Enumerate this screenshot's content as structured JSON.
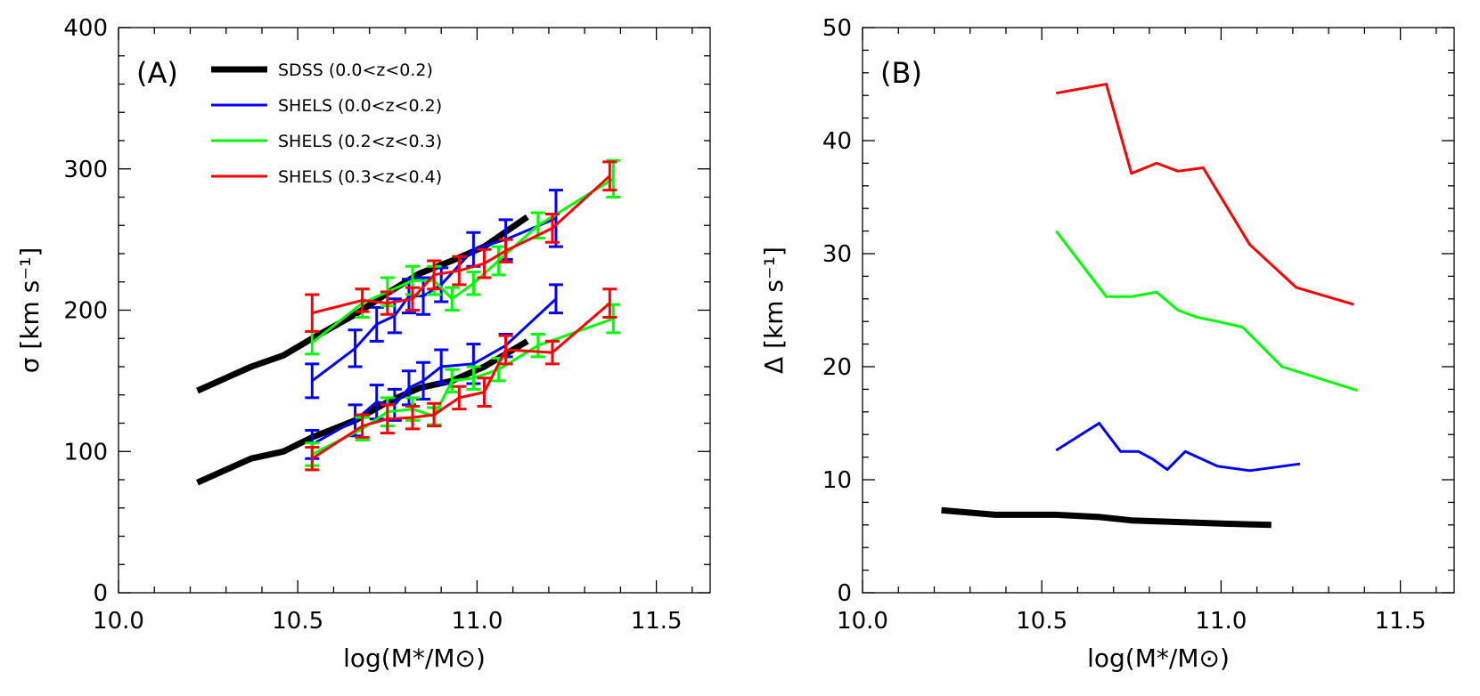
{
  "chart_data": [
    {
      "type": "line",
      "panel_label": "(A)",
      "xlabel": "log(M*/M⊙)",
      "ylabel": "σ [km s⁻¹]",
      "xlim": [
        10.0,
        11.65
      ],
      "ylim": [
        0,
        400
      ],
      "xticks": [
        "10.0",
        "10.5",
        "11.0",
        "11.5"
      ],
      "xtick_values": [
        10.0,
        10.5,
        11.0,
        11.5
      ],
      "yticks": [
        "0",
        "100",
        "200",
        "300",
        "400"
      ],
      "ytick_values": [
        0,
        100,
        200,
        300,
        400
      ],
      "grid": false,
      "legend_position": "top-left",
      "legend": [
        {
          "label": "SDSS   (0.0<z<0.2)",
          "color": "#000000"
        },
        {
          "label": "SHELS  (0.0<z<0.2)",
          "color": "#0000ff"
        },
        {
          "label": "SHELS  (0.2<z<0.3)",
          "color": "#00ff00"
        },
        {
          "label": "SHELS  (0.3<z<0.4)",
          "color": "#ff0000"
        }
      ],
      "series": [
        {
          "color": "#000000",
          "group": "upper",
          "x": [
            10.22,
            10.37,
            10.46,
            10.54,
            10.66,
            10.75,
            10.84,
            10.93,
            11.02,
            11.14
          ],
          "y": [
            143,
            160,
            168,
            180,
            197,
            212,
            226,
            235,
            245,
            266
          ]
        },
        {
          "color": "#000000",
          "group": "lower",
          "x": [
            10.22,
            10.37,
            10.46,
            10.54,
            10.66,
            10.75,
            10.84,
            10.93,
            11.02,
            11.14
          ],
          "y": [
            78,
            95,
            100,
            110,
            122,
            135,
            145,
            150,
            160,
            178
          ]
        },
        {
          "color": "#0000ff",
          "group": "upper",
          "x": [
            10.54,
            10.66,
            10.72,
            10.77,
            10.81,
            10.85,
            10.9,
            10.99,
            11.08,
            11.22
          ],
          "y": [
            150,
            173,
            190,
            196,
            210,
            210,
            218,
            243,
            250,
            265
          ],
          "err": [
            12,
            13,
            12,
            12,
            12,
            13,
            12,
            12,
            14,
            20
          ]
        },
        {
          "color": "#0000ff",
          "group": "lower",
          "x": [
            10.54,
            10.66,
            10.72,
            10.77,
            10.81,
            10.85,
            10.9,
            10.99,
            11.08,
            11.22
          ],
          "y": [
            105,
            122,
            135,
            133,
            145,
            150,
            160,
            162,
            175,
            208
          ],
          "err": [
            10,
            11,
            12,
            11,
            12,
            13,
            12,
            14,
            8,
            10
          ]
        },
        {
          "color": "#00ff00",
          "group": "upper",
          "x": [
            10.54,
            10.68,
            10.75,
            10.82,
            10.88,
            10.93,
            10.99,
            11.06,
            11.17,
            11.38
          ],
          "y": [
            177,
            205,
            213,
            221,
            221,
            208,
            219,
            235,
            260,
            293
          ],
          "err": [
            8,
            10,
            10,
            10,
            10,
            8,
            8,
            10,
            9,
            13
          ]
        },
        {
          "color": "#00ff00",
          "group": "lower",
          "x": [
            10.54,
            10.68,
            10.75,
            10.82,
            10.88,
            10.93,
            10.99,
            11.06,
            11.17,
            11.38
          ],
          "y": [
            98,
            116,
            128,
            130,
            125,
            150,
            152,
            158,
            175,
            194
          ],
          "err": [
            8,
            8,
            10,
            8,
            6,
            8,
            8,
            8,
            8,
            10
          ]
        },
        {
          "color": "#ff0000",
          "group": "upper",
          "x": [
            10.54,
            10.68,
            10.75,
            10.82,
            10.88,
            10.95,
            11.02,
            11.08,
            11.21,
            11.37
          ],
          "y": [
            198,
            207,
            205,
            208,
            225,
            228,
            233,
            242,
            258,
            295
          ],
          "err": [
            13,
            8,
            8,
            8,
            10,
            10,
            10,
            8,
            10,
            10
          ]
        },
        {
          "color": "#ff0000",
          "group": "lower",
          "x": [
            10.54,
            10.68,
            10.75,
            10.82,
            10.88,
            10.95,
            11.02,
            11.08,
            11.21,
            11.37
          ],
          "y": [
            95,
            118,
            123,
            124,
            126,
            138,
            142,
            172,
            170,
            205
          ],
          "err": [
            8,
            8,
            10,
            8,
            8,
            8,
            10,
            10,
            8,
            10
          ]
        }
      ]
    },
    {
      "type": "line",
      "panel_label": "(B)",
      "xlabel": "log(M*/M⊙)",
      "ylabel": "Δ [km s⁻¹]",
      "xlim": [
        10.0,
        11.65
      ],
      "ylim": [
        0,
        50
      ],
      "xticks": [
        "10.0",
        "10.5",
        "11.0",
        "11.5"
      ],
      "xtick_values": [
        10.0,
        10.5,
        11.0,
        11.5
      ],
      "yticks": [
        "0",
        "10",
        "20",
        "30",
        "40",
        "50"
      ],
      "ytick_values": [
        0,
        10,
        20,
        30,
        40,
        50
      ],
      "grid": false,
      "series": [
        {
          "color": "#000000",
          "x": [
            10.22,
            10.37,
            10.54,
            10.66,
            10.75,
            10.84,
            10.93,
            11.02,
            11.14
          ],
          "y": [
            7.3,
            6.9,
            6.9,
            6.7,
            6.4,
            6.3,
            6.2,
            6.1,
            6.0
          ]
        },
        {
          "color": "#0000ff",
          "x": [
            10.54,
            10.66,
            10.72,
            10.77,
            10.81,
            10.85,
            10.9,
            10.99,
            11.08,
            11.22
          ],
          "y": [
            12.6,
            15.0,
            12.5,
            12.5,
            11.8,
            10.9,
            12.5,
            11.2,
            10.8,
            11.4
          ]
        },
        {
          "color": "#00ff00",
          "x": [
            10.54,
            10.68,
            10.75,
            10.82,
            10.88,
            10.93,
            10.99,
            11.06,
            11.17,
            11.38
          ],
          "y": [
            32.0,
            26.2,
            26.2,
            26.6,
            25.0,
            24.4,
            24.0,
            23.5,
            20.0,
            17.9
          ]
        },
        {
          "color": "#ff0000",
          "x": [
            10.54,
            10.68,
            10.75,
            10.82,
            10.88,
            10.95,
            11.08,
            11.21,
            11.37
          ],
          "y": [
            44.2,
            45.0,
            37.1,
            38.0,
            37.3,
            37.6,
            30.8,
            27.0,
            25.5
          ]
        }
      ]
    }
  ]
}
